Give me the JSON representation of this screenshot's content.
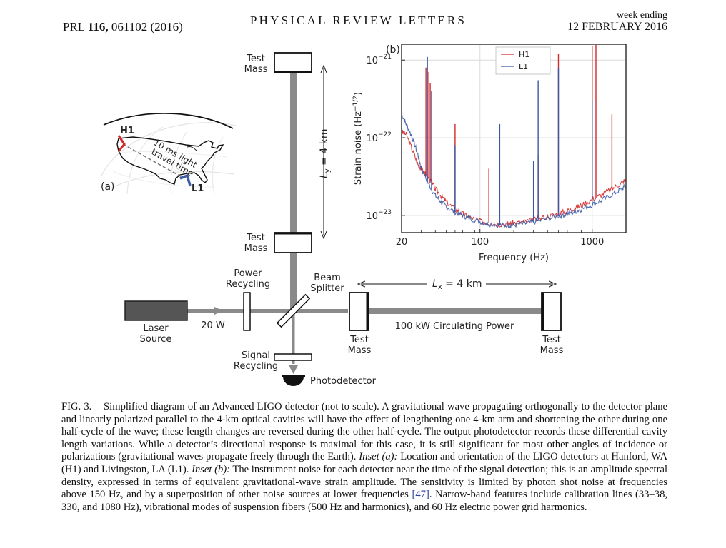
{
  "header": {
    "journal_ref_prefix": "PRL",
    "volume": "116,",
    "article": "061102 (2016)",
    "journal": "PHYSICAL REVIEW LETTERS",
    "week_ending": "week ending",
    "date": "12 FEBRUARY 2016"
  },
  "diagram": {
    "test_mass_top": [
      "Test",
      "Mass"
    ],
    "test_mass_mid": [
      "Test",
      "Mass"
    ],
    "ly_label": "L",
    "ly_sub": "y",
    "ly_value": " = 4 km",
    "power_recycling": [
      "Power",
      "Recycling"
    ],
    "beam_splitter": [
      "Beam",
      "Splitter"
    ],
    "lx_label": "L",
    "lx_sub": "x",
    "lx_value": " = 4 km",
    "laser_source": [
      "Laser",
      "Source"
    ],
    "laser_power": "20 W",
    "circulating_power": "100 kW Circulating Power",
    "test_mass_near": [
      "Test",
      "Mass"
    ],
    "test_mass_far": [
      "Test",
      "Mass"
    ],
    "signal_recycling": [
      "Signal",
      "Recycling"
    ],
    "photodetector": "Photodetector"
  },
  "inset_a": {
    "panel_label": "(a)",
    "h1_label": "H1",
    "l1_label": "L1",
    "travel_time": [
      "10 ms light",
      "travel time"
    ],
    "colors": {
      "h1": "#d42a2a",
      "l1": "#3b5aa5"
    }
  },
  "inset_b": {
    "panel_label": "(b)"
  },
  "chart_data": {
    "type": "line",
    "x_scale": "log",
    "y_scale": "log",
    "xlabel": "Frequency (Hz)",
    "ylabel": "Strain noise (Hz^-1/2)",
    "xlim": [
      20,
      2000
    ],
    "ylim": [
      6e-24,
      1.6e-21
    ],
    "x_ticks": [
      20,
      100,
      1000
    ],
    "x_tick_labels": [
      "20",
      "100",
      "1000"
    ],
    "y_ticks": [
      1e-23,
      1e-22,
      1e-21
    ],
    "y_tick_labels": [
      "10",
      "10",
      "10"
    ],
    "y_tick_exponents": [
      "−23",
      "−22",
      "−21"
    ],
    "grid": true,
    "legend_position": "top-right",
    "series": [
      {
        "name": "H1",
        "color": "#d42a2a",
        "x": [
          20,
          22,
          25,
          28,
          30,
          35,
          40,
          45,
          50,
          60,
          70,
          80,
          100,
          120,
          150,
          180,
          200,
          250,
          300,
          400,
          500,
          600,
          700,
          800,
          1000,
          1200,
          1500,
          1800,
          2000
        ],
        "y": [
          1.2e-22,
          1.1e-22,
          7e-23,
          4.5e-23,
          4e-23,
          3e-23,
          2.2e-23,
          1.8e-23,
          1.5e-23,
          1.2e-23,
          1.05e-23,
          9.5e-24,
          8.5e-24,
          8e-24,
          7.7e-24,
          7.8e-24,
          8e-24,
          8.3e-24,
          8.8e-24,
          9.7e-24,
          1.05e-23,
          1.15e-23,
          1.25e-23,
          1.35e-23,
          1.6e-23,
          1.85e-23,
          2.2e-23,
          2.6e-23,
          2.9e-23
        ],
        "lines": [
          {
            "x": 33,
            "y": 8e-22
          },
          {
            "x": 35,
            "y": 7e-22
          },
          {
            "x": 36,
            "y": 5e-22
          },
          {
            "x": 60,
            "y": 1.5e-22
          },
          {
            "x": 120,
            "y": 4e-23
          },
          {
            "x": 330,
            "y": 6e-23
          },
          {
            "x": 500,
            "y": 1.2e-21
          },
          {
            "x": 1000,
            "y": 1.5e-21
          },
          {
            "x": 1080,
            "y": 1.6e-21
          },
          {
            "x": 1500,
            "y": 2e-22
          }
        ]
      },
      {
        "name": "L1",
        "color": "#3b5aa5",
        "x": [
          20,
          22,
          25,
          28,
          30,
          35,
          40,
          45,
          50,
          60,
          70,
          80,
          100,
          120,
          150,
          180,
          200,
          250,
          300,
          400,
          500,
          600,
          700,
          800,
          1000,
          1200,
          1500,
          1800,
          2000
        ],
        "y": [
          2e-22,
          1.5e-22,
          1e-22,
          6e-23,
          4e-23,
          2.5e-23,
          1.8e-23,
          1.5e-23,
          1.3e-23,
          1.1e-23,
          1e-23,
          9.2e-24,
          8.3e-24,
          7.8e-24,
          7.5e-24,
          7.4e-24,
          7.5e-24,
          7.8e-24,
          8.2e-24,
          9e-24,
          9.8e-24,
          1.05e-23,
          1.12e-23,
          1.2e-23,
          1.38e-23,
          1.55e-23,
          1.85e-23,
          2.15e-23,
          2.4e-23
        ],
        "lines": [
          {
            "x": 34,
            "y": 1.1e-21
          },
          {
            "x": 37,
            "y": 4e-22
          },
          {
            "x": 60,
            "y": 8e-23
          },
          {
            "x": 150,
            "y": 1.5e-22
          },
          {
            "x": 300,
            "y": 5e-23
          },
          {
            "x": 330,
            "y": 5.5e-22
          },
          {
            "x": 500,
            "y": 8e-22
          },
          {
            "x": 1000,
            "y": 3e-22
          }
        ]
      }
    ]
  },
  "caption": {
    "fig_label": "FIG. 3.",
    "text_1": "Simplified diagram of an Advanced LIGO detector (not to scale). A gravitational wave propagating orthogonally to the detector plane and linearly polarized parallel to the 4-km optical cavities will have the effect of lengthening one 4-km arm and shortening the other during one half-cycle of the wave; these length changes are reversed during the other half-cycle. The output photodetector records these differential cavity length variations. While a detector’s directional response is maximal for this case, it is still significant for most other angles of incidence or polarizations (gravitational waves propagate freely through the Earth).",
    "inset_a_label": "Inset (a):",
    "text_2": "Location and orientation of the LIGO detectors at Hanford, WA (H1) and Livingston, LA (L1).",
    "inset_b_label": "Inset (b):",
    "text_3": "The instrument noise for each detector near the time of the signal detection; this is an amplitude spectral density, expressed in terms of equivalent gravitational-wave strain amplitude. The sensitivity is limited by photon shot noise at frequencies above 150 Hz, and by a superposition of other noise sources at lower frequencies",
    "ref": "[47]",
    "text_4": ". Narrow-band features include calibration lines (33–38, 330, and 1080 Hz), vibrational modes of suspension fibers (500 Hz and harmonics), and 60 Hz electric power grid harmonics."
  }
}
